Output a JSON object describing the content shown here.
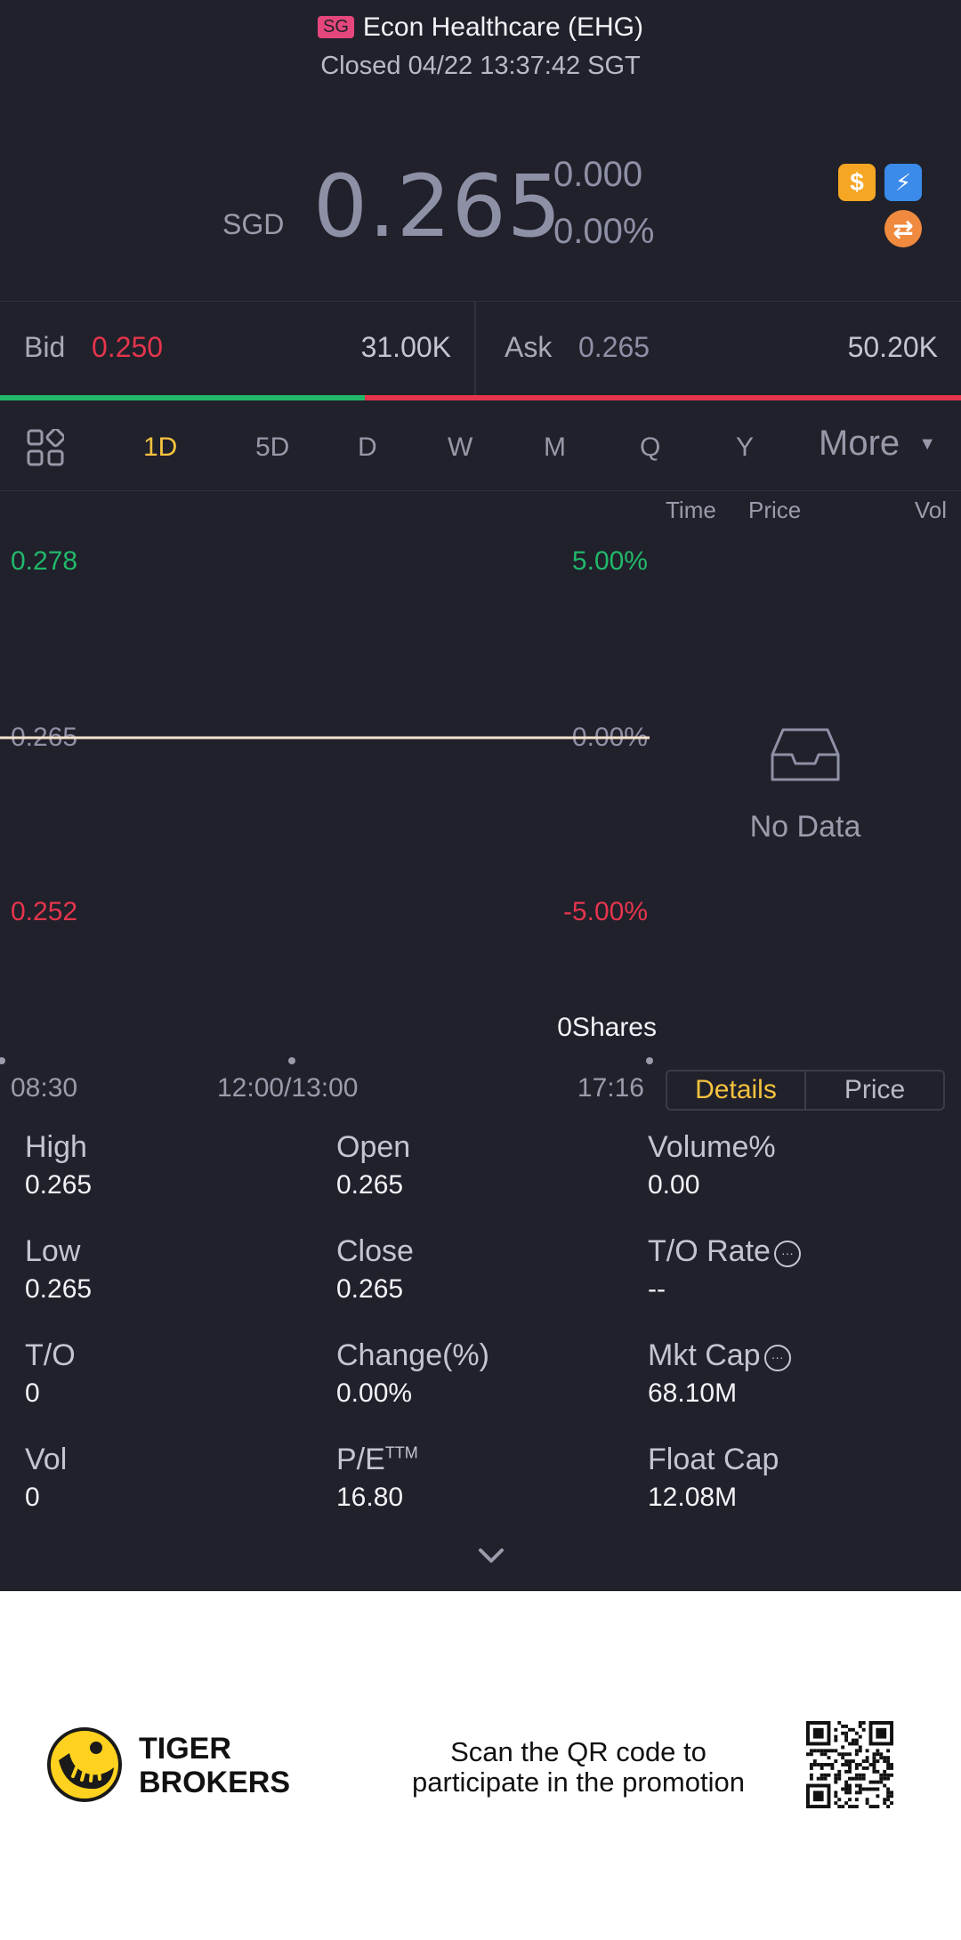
{
  "header": {
    "market_badge": "SG",
    "title": "Econ Healthcare (EHG)",
    "status": "Closed 04/22 13:37:42 SGT"
  },
  "quote": {
    "currency": "SGD",
    "price": "0.265",
    "change": "0.000",
    "change_pct": "0.00%",
    "icons": [
      "dollar-badge-icon",
      "flash-badge-icon",
      "exchange-badge-icon"
    ]
  },
  "bid_ask": {
    "bid_label": "Bid",
    "bid_price": "0.250",
    "bid_size": "31.00K",
    "ask_label": "Ask",
    "ask_price": "0.265",
    "ask_size": "50.20K",
    "bid_ratio": 0.38
  },
  "tabs": [
    "1D",
    "5D",
    "D",
    "W",
    "M",
    "Q",
    "Y"
  ],
  "tabs_active": "1D",
  "tabs_more": "More",
  "chart": {
    "y_top": "0.278",
    "y_top_pct": "5.00%",
    "y_mid": "0.265",
    "y_mid_pct": "0.00%",
    "y_bot": "0.252",
    "y_bot_pct": "-5.00%",
    "volume_label": "0Shares",
    "x_start": "08:30",
    "x_mid": "12:00/13:00",
    "x_end": "17:16"
  },
  "chart_data": {
    "type": "line",
    "x": [
      "08:30",
      "17:16"
    ],
    "series": [
      {
        "values": [
          0.265,
          0.265
        ]
      }
    ],
    "ylim": [
      0.252,
      0.278
    ]
  },
  "trades": {
    "col_time": "Time",
    "col_price": "Price",
    "col_vol": "Vol",
    "empty": "No Data"
  },
  "toggle": {
    "details": "Details",
    "price": "Price"
  },
  "stats": [
    {
      "label": "High",
      "value": "0.265"
    },
    {
      "label": "Open",
      "value": "0.265"
    },
    {
      "label": "Volume%",
      "value": "0.00"
    },
    {
      "label": "Low",
      "value": "0.265"
    },
    {
      "label": "Close",
      "value": "0.265"
    },
    {
      "label": "T/O Rate",
      "value": "--"
    },
    {
      "label": "T/O",
      "value": "0"
    },
    {
      "label": "Change(%)",
      "value": "0.00%"
    },
    {
      "label": "Mkt Cap",
      "value": "68.10M"
    },
    {
      "label": "Vol",
      "value": "0"
    },
    {
      "label": "P/E",
      "sup": "TTM",
      "value": "16.80"
    },
    {
      "label": "Float Cap",
      "value": "12.08M"
    }
  ],
  "footer": {
    "brand_line1": "TIGER",
    "brand_line2": "BROKERS",
    "promo_line1": "Scan the QR code to",
    "promo_line2": "participate in the promotion"
  },
  "colors": {
    "background": "#20212b",
    "accent": "#f6c23e",
    "up": "#22b86a",
    "down": "#e5354d"
  }
}
